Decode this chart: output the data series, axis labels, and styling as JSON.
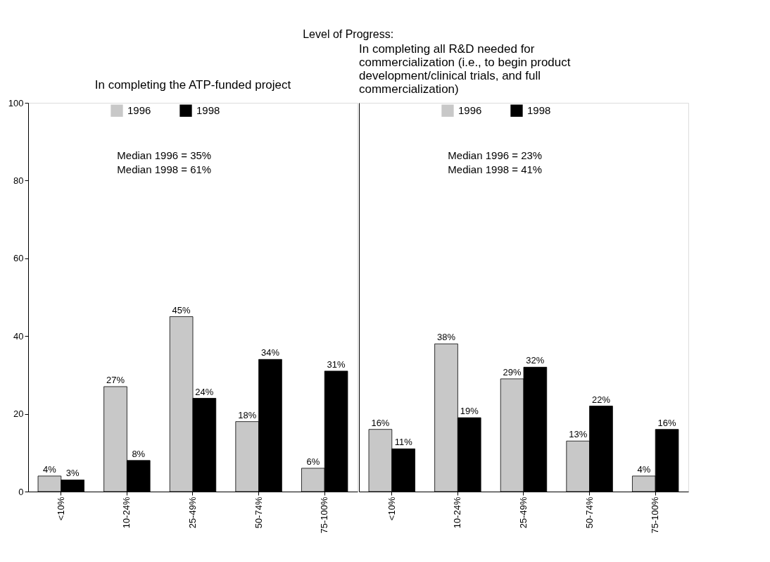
{
  "chart_data": [
    {
      "type": "bar",
      "title": "Level of Progress:",
      "subtitle": "In completing the ATP-funded project",
      "categories": [
        "<10%",
        "10-24%",
        "25-49%",
        "50-74%",
        "75-100%"
      ],
      "series": [
        {
          "name": "1996",
          "color": "#c8c8c8",
          "values": [
            4,
            27,
            45,
            18,
            6
          ],
          "value_labels": [
            "4%",
            "27%",
            "45%",
            "18%",
            "6%"
          ]
        },
        {
          "name": "1998",
          "color": "#000000",
          "values": [
            3,
            8,
            24,
            34,
            31
          ],
          "value_labels": [
            "3%",
            "8%",
            "24%",
            "34%",
            "31%"
          ]
        }
      ],
      "ylim": [
        0,
        100
      ],
      "yticks": [
        0,
        20,
        40,
        60,
        80,
        100
      ],
      "grid": false,
      "legend": "top",
      "annotations": [
        "Median 1996 = 35%",
        "Median 1998 = 61%"
      ]
    },
    {
      "type": "bar",
      "title": "In completing all R&D needed for commercialization (i.e., to begin product development/clinical trials, and full commercialization)",
      "categories": [
        "<10%",
        "10-24%",
        "25-49%",
        "50-74%",
        "75-100%"
      ],
      "series": [
        {
          "name": "1996",
          "color": "#c8c8c8",
          "values": [
            16,
            38,
            29,
            13,
            4
          ],
          "value_labels": [
            "16%",
            "38%",
            "29%",
            "13%",
            "4%"
          ]
        },
        {
          "name": "1998",
          "color": "#000000",
          "values": [
            11,
            19,
            32,
            22,
            16
          ],
          "value_labels": [
            "11%",
            "19%",
            "32%",
            "22%",
            "16%"
          ]
        }
      ],
      "ylim": [
        0,
        100
      ],
      "yticks": [
        0,
        20,
        40,
        60,
        80,
        100
      ],
      "grid": false,
      "legend": "top",
      "tick_labels": "x",
      "annotations": [
        "Median 1996 = 23%",
        "Median 1998 = 41%"
      ]
    }
  ]
}
